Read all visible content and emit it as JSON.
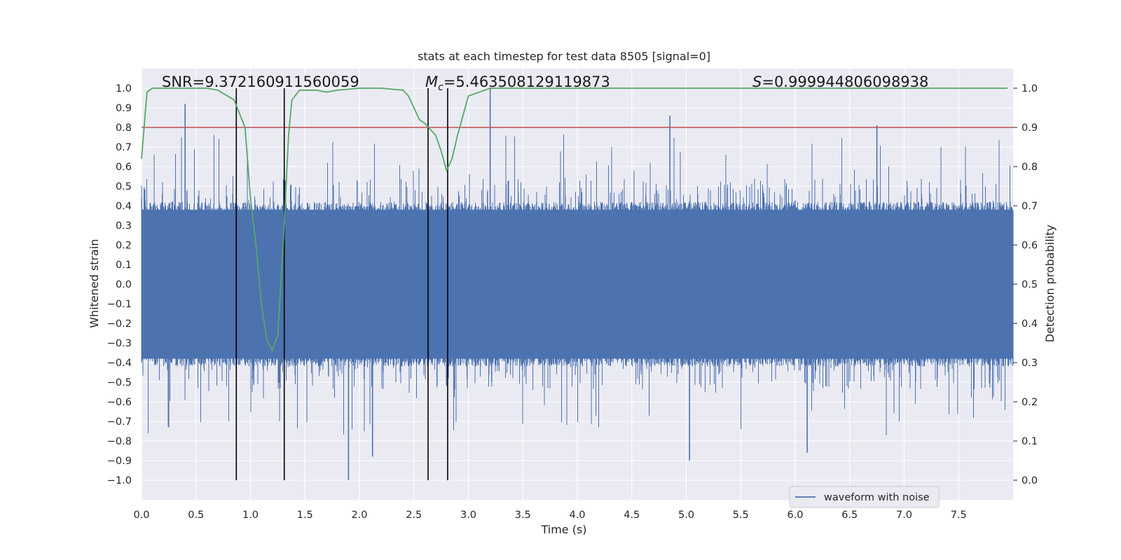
{
  "chart_data": {
    "type": "line",
    "title": "stats at each timestep for test data 8505 [signal=0]",
    "xlabel": "Time (s)",
    "ylabel": "Whitened strain",
    "y2label": "Detection probability",
    "xlim": [
      0.0,
      8.0
    ],
    "ylim": [
      -1.1,
      1.1
    ],
    "y2lim": [
      -0.05,
      1.05
    ],
    "x_ticks": [
      "0.0",
      "0.5",
      "1.0",
      "1.5",
      "2.0",
      "2.5",
      "3.0",
      "3.5",
      "4.0",
      "4.5",
      "5.0",
      "5.5",
      "6.0",
      "6.5",
      "7.0",
      "7.5"
    ],
    "y_ticks": [
      "1.0",
      "0.9",
      "0.8",
      "0.7",
      "0.6",
      "0.5",
      "0.4",
      "0.3",
      "0.2",
      "0.1",
      "0.0",
      "−0.1",
      "−0.2",
      "−0.3",
      "−0.4",
      "−0.5",
      "−0.6",
      "−0.7",
      "−0.8",
      "−0.9",
      "−1.0"
    ],
    "y2_ticks": [
      "1.0",
      "0.9",
      "0.8",
      "0.7",
      "0.6",
      "0.5",
      "0.4",
      "0.3",
      "0.2",
      "0.1",
      "0.0"
    ],
    "grid": true,
    "legend_placement": "lower-right",
    "colors": {
      "waveform": "#4c72b0",
      "probability": "#55a868",
      "threshold": "#c44e52",
      "markers": "#000000",
      "background": "#eaeaf2",
      "grid": "#ffffff"
    },
    "series": [
      {
        "name": "waveform with noise",
        "axis": "left",
        "kind": "noise-waveform",
        "typical_envelope": 0.4,
        "notable_peaks": [
          {
            "x": 0.4,
            "y": 0.92
          },
          {
            "x": 3.2,
            "y": 1.0
          },
          {
            "x": 4.85,
            "y": 0.86
          },
          {
            "x": 6.75,
            "y": 0.81
          },
          {
            "x": 1.9,
            "y": -1.0
          },
          {
            "x": 2.12,
            "y": -0.88
          },
          {
            "x": 5.03,
            "y": -0.9
          },
          {
            "x": 6.11,
            "y": -0.86
          }
        ]
      },
      {
        "axis": "right",
        "kind": "line",
        "x": [
          0.0,
          0.05,
          0.1,
          0.3,
          0.6,
          0.7,
          0.85,
          0.95,
          1.0,
          1.05,
          1.1,
          1.15,
          1.2,
          1.25,
          1.3,
          1.35,
          1.38,
          1.45,
          1.6,
          1.7,
          1.8,
          2.0,
          2.2,
          2.4,
          2.45,
          2.5,
          2.55,
          2.6,
          2.7,
          2.75,
          2.8,
          2.85,
          2.9,
          3.0,
          3.2,
          4.0,
          5.0,
          6.0,
          6.5,
          7.0,
          7.5,
          7.95
        ],
        "y": [
          0.82,
          0.99,
          1.0,
          1.0,
          1.0,
          0.995,
          0.97,
          0.9,
          0.72,
          0.6,
          0.45,
          0.36,
          0.33,
          0.37,
          0.6,
          0.88,
          0.97,
          0.995,
          0.995,
          0.99,
          0.995,
          1.0,
          1.0,
          0.995,
          0.98,
          0.95,
          0.92,
          0.91,
          0.88,
          0.84,
          0.79,
          0.82,
          0.88,
          0.98,
          1.0,
          1.0,
          1.0,
          1.0,
          1.0,
          1.0,
          1.0,
          1.0
        ]
      },
      {
        "axis": "left",
        "kind": "hline",
        "y": 0.8
      }
    ],
    "vertical_markers": [
      0.87,
      1.31,
      2.63,
      2.81
    ],
    "vertical_marker_range": [
      -1.0,
      1.0
    ],
    "annotations": {
      "snr": "SNR=9.372160911560059",
      "mc_symbol": "M",
      "mc_sub": "c",
      "mc_value": "=5.463508129119873",
      "s_symbol": "S",
      "s_value": "=0.999944806098938"
    },
    "legend": [
      "waveform with noise"
    ]
  }
}
